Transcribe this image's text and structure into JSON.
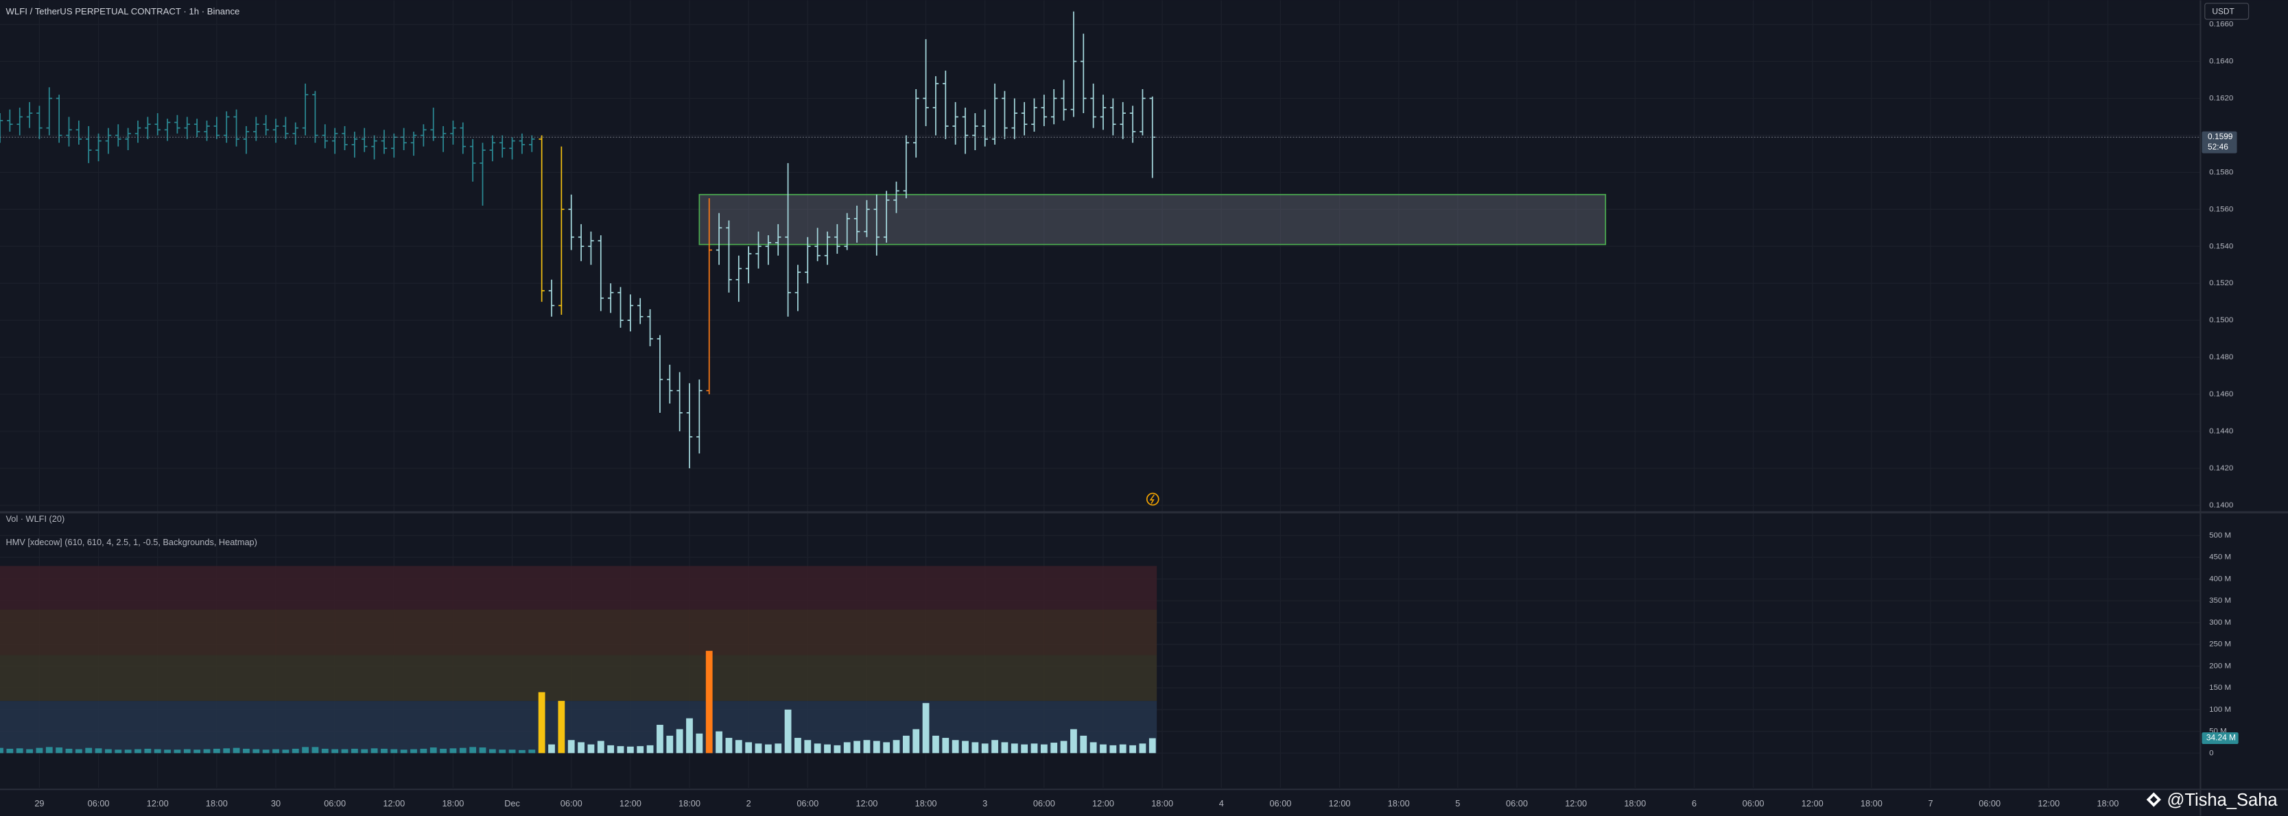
{
  "chart_data": {
    "type": "candlestick",
    "title": "WLFI / TetherUS PERPETUAL CONTRACT · 1h · Binance",
    "currency": "USDT",
    "countdown": "52:46",
    "volume_title": "Vol · WLFI (20)",
    "indicator_title": "HMV [xdecow] (610, 610, 4, 2.5, 1, -0.5, Backgrounds, Heatmap)",
    "watermark": "@Tisha_Saha",
    "xlim": [
      0,
      223.4
    ],
    "xticks": [
      {
        "value": 4,
        "label": "29"
      },
      {
        "value": 10,
        "label": "06:00"
      },
      {
        "value": 16,
        "label": "12:00"
      },
      {
        "value": 22,
        "label": "18:00"
      },
      {
        "value": 28,
        "label": "30"
      },
      {
        "value": 34,
        "label": "06:00"
      },
      {
        "value": 40,
        "label": "12:00"
      },
      {
        "value": 46,
        "label": "18:00"
      },
      {
        "value": 52,
        "label": "Dec"
      },
      {
        "value": 58,
        "label": "06:00"
      },
      {
        "value": 64,
        "label": "12:00"
      },
      {
        "value": 70,
        "label": "18:00"
      },
      {
        "value": 76,
        "label": "2"
      },
      {
        "value": 82,
        "label": "06:00"
      },
      {
        "value": 88,
        "label": "12:00"
      },
      {
        "value": 94,
        "label": "18:00"
      },
      {
        "value": 100,
        "label": "3"
      },
      {
        "value": 106,
        "label": "06:00"
      },
      {
        "value": 112,
        "label": "12:00"
      },
      {
        "value": 118,
        "label": "18:00"
      },
      {
        "value": 124,
        "label": "4"
      },
      {
        "value": 130,
        "label": "06:00"
      },
      {
        "value": 136,
        "label": "12:00"
      },
      {
        "value": 142,
        "label": "18:00"
      },
      {
        "value": 148,
        "label": "5"
      },
      {
        "value": 154,
        "label": "06:00"
      },
      {
        "value": 160,
        "label": "12:00"
      },
      {
        "value": 166,
        "label": "18:00"
      },
      {
        "value": 172,
        "label": "6"
      },
      {
        "value": 178,
        "label": "06:00"
      },
      {
        "value": 184,
        "label": "12:00"
      },
      {
        "value": 190,
        "label": "18:00"
      },
      {
        "value": 196,
        "label": "7"
      },
      {
        "value": 202,
        "label": "06:00"
      },
      {
        "value": 208,
        "label": "12:00"
      },
      {
        "value": 214,
        "label": "18:00"
      }
    ],
    "ylim": [
      0.1397,
      0.1673
    ],
    "yticks": [
      {
        "value": 0.14,
        "label": "0.1400"
      },
      {
        "value": 0.142,
        "label": "0.1420"
      },
      {
        "value": 0.144,
        "label": "0.1440"
      },
      {
        "value": 0.146,
        "label": "0.1460"
      },
      {
        "value": 0.148,
        "label": "0.1480"
      },
      {
        "value": 0.15,
        "label": "0.1500"
      },
      {
        "value": 0.152,
        "label": "0.1520"
      },
      {
        "value": 0.154,
        "label": "0.1540"
      },
      {
        "value": 0.156,
        "label": "0.1560"
      },
      {
        "value": 0.158,
        "label": "0.1580"
      },
      {
        "value": 0.16,
        "label": "0.1600"
      },
      {
        "value": 0.162,
        "label": "0.1620"
      },
      {
        "value": 0.164,
        "label": "0.1640"
      },
      {
        "value": 0.166,
        "label": "0.1660"
      }
    ],
    "grid": true,
    "zone": {
      "x": [
        71,
        163
      ],
      "price": [
        0.1541,
        0.1568
      ],
      "color": "#4caf50"
    },
    "bar_colors": [
      {
        "min": 0,
        "color": "#2b8c96"
      },
      {
        "min": 15,
        "color": "#a7dbe0"
      },
      {
        "min": 120,
        "color": "#f5c211"
      },
      {
        "min": 225,
        "color": "#ff7b16"
      }
    ],
    "heatmap": [
      {
        "from": 0,
        "to": 120,
        "color": "#24344a"
      },
      {
        "from": 120,
        "to": 225,
        "color": "#373427"
      },
      {
        "from": 225,
        "to": 330,
        "color": "#3d2c25"
      },
      {
        "from": 330,
        "to": 430,
        "color": "#3a1e28"
      }
    ],
    "vol_ylim": [
      -80,
      550
    ],
    "vol_yticks": [
      0,
      {
        "value": 50,
        "label": "50 M"
      },
      {
        "value": 100,
        "label": "100 M"
      },
      {
        "value": 150,
        "label": "150 M"
      },
      {
        "value": 200,
        "label": "200 M"
      },
      {
        "value": 250,
        "label": "250 M"
      },
      {
        "value": 300,
        "label": "300 M"
      },
      {
        "value": 350,
        "label": "350 M"
      },
      {
        "value": 400,
        "label": "400 M"
      },
      {
        "value": 450,
        "label": "450 M"
      },
      {
        "value": 500,
        "label": "500 M"
      }
    ],
    "ohlc": [
      [
        0.1603,
        0.1612,
        0.1596,
        0.1608
      ],
      [
        0.1608,
        0.1614,
        0.1602,
        0.1606
      ],
      [
        0.1606,
        0.1615,
        0.16,
        0.161
      ],
      [
        0.161,
        0.1618,
        0.1604,
        0.1612
      ],
      [
        0.1612,
        0.1616,
        0.1598,
        0.1604
      ],
      [
        0.1604,
        0.1626,
        0.16,
        0.162
      ],
      [
        0.162,
        0.1622,
        0.1596,
        0.16
      ],
      [
        0.16,
        0.161,
        0.1594,
        0.1603
      ],
      [
        0.1603,
        0.1608,
        0.1595,
        0.1598
      ],
      [
        0.1598,
        0.1605,
        0.1585,
        0.1592
      ],
      [
        0.1592,
        0.1601,
        0.1586,
        0.1597
      ],
      [
        0.1597,
        0.1604,
        0.159,
        0.16
      ],
      [
        0.16,
        0.1606,
        0.1594,
        0.1598
      ],
      [
        0.1598,
        0.1604,
        0.1592,
        0.1601
      ],
      [
        0.1601,
        0.1608,
        0.1596,
        0.1604
      ],
      [
        0.1604,
        0.161,
        0.1598,
        0.1606
      ],
      [
        0.1606,
        0.1612,
        0.16,
        0.1603
      ],
      [
        0.1603,
        0.1609,
        0.1597,
        0.1607
      ],
      [
        0.1607,
        0.1611,
        0.1601,
        0.1604
      ],
      [
        0.1604,
        0.161,
        0.1598,
        0.1606
      ],
      [
        0.1606,
        0.1609,
        0.1599,
        0.1602
      ],
      [
        0.1602,
        0.1608,
        0.1597,
        0.1605
      ],
      [
        0.1605,
        0.161,
        0.1598,
        0.16
      ],
      [
        0.16,
        0.1613,
        0.1596,
        0.161
      ],
      [
        0.161,
        0.1614,
        0.1594,
        0.1598
      ],
      [
        0.1598,
        0.1605,
        0.159,
        0.1602
      ],
      [
        0.1602,
        0.161,
        0.1597,
        0.1606
      ],
      [
        0.1606,
        0.1611,
        0.16,
        0.1603
      ],
      [
        0.1603,
        0.1609,
        0.1596,
        0.1605
      ],
      [
        0.1605,
        0.161,
        0.1598,
        0.1601
      ],
      [
        0.1601,
        0.1607,
        0.1595,
        0.1604
      ],
      [
        0.1604,
        0.1628,
        0.16,
        0.1622
      ],
      [
        0.1622,
        0.1624,
        0.1596,
        0.16
      ],
      [
        0.16,
        0.1606,
        0.1593,
        0.1597
      ],
      [
        0.1597,
        0.1604,
        0.159,
        0.1601
      ],
      [
        0.1601,
        0.1605,
        0.1592,
        0.1595
      ],
      [
        0.1595,
        0.1602,
        0.1588,
        0.1598
      ],
      [
        0.1598,
        0.1604,
        0.1591,
        0.1594
      ],
      [
        0.1594,
        0.16,
        0.1587,
        0.1597
      ],
      [
        0.1597,
        0.1603,
        0.159,
        0.1593
      ],
      [
        0.1593,
        0.1601,
        0.1588,
        0.1599
      ],
      [
        0.1599,
        0.1604,
        0.1592,
        0.1596
      ],
      [
        0.1596,
        0.1602,
        0.1589,
        0.16
      ],
      [
        0.16,
        0.1606,
        0.1594,
        0.1603
      ],
      [
        0.1603,
        0.1615,
        0.1597,
        0.1599
      ],
      [
        0.1599,
        0.1605,
        0.1591,
        0.1601
      ],
      [
        0.1601,
        0.1608,
        0.1595,
        0.1604
      ],
      [
        0.1604,
        0.1607,
        0.159,
        0.1594
      ],
      [
        0.1594,
        0.1598,
        0.1575,
        0.1585
      ],
      [
        0.1585,
        0.1596,
        0.1562,
        0.1592
      ],
      [
        0.1592,
        0.16,
        0.1586,
        0.1596
      ],
      [
        0.1596,
        0.16,
        0.1588,
        0.1593
      ],
      [
        0.1593,
        0.1599,
        0.1587,
        0.1597
      ],
      [
        0.1597,
        0.1601,
        0.159,
        0.1595
      ],
      [
        0.1595,
        0.16,
        0.1591,
        0.1598
      ],
      [
        0.1598,
        0.16,
        0.151,
        0.1516
      ],
      [
        0.1516,
        0.1522,
        0.1502,
        0.1508
      ],
      [
        0.1508,
        0.1594,
        0.1503,
        0.156
      ],
      [
        0.156,
        0.1568,
        0.1538,
        0.1545
      ],
      [
        0.1545,
        0.1552,
        0.1532,
        0.154
      ],
      [
        0.154,
        0.1548,
        0.153,
        0.1543
      ],
      [
        0.1543,
        0.1546,
        0.1505,
        0.1512
      ],
      [
        0.1512,
        0.152,
        0.1504,
        0.1515
      ],
      [
        0.1515,
        0.1518,
        0.1496,
        0.15
      ],
      [
        0.15,
        0.1514,
        0.1494,
        0.1508
      ],
      [
        0.1508,
        0.1512,
        0.1498,
        0.1502
      ],
      [
        0.1502,
        0.1506,
        0.1486,
        0.149
      ],
      [
        0.149,
        0.1492,
        0.145,
        0.1468
      ],
      [
        0.1468,
        0.1476,
        0.1455,
        0.1462
      ],
      [
        0.1462,
        0.1472,
        0.144,
        0.145
      ],
      [
        0.145,
        0.1466,
        0.142,
        0.1437
      ],
      [
        0.1437,
        0.1468,
        0.1428,
        0.1462
      ],
      [
        0.1462,
        0.1566,
        0.146,
        0.1538
      ],
      [
        0.1538,
        0.1558,
        0.153,
        0.155
      ],
      [
        0.155,
        0.1554,
        0.1515,
        0.1522
      ],
      [
        0.1522,
        0.1535,
        0.151,
        0.1528
      ],
      [
        0.1528,
        0.154,
        0.152,
        0.1536
      ],
      [
        0.1536,
        0.1548,
        0.1528,
        0.154
      ],
      [
        0.154,
        0.1546,
        0.153,
        0.1542
      ],
      [
        0.1542,
        0.1552,
        0.1535,
        0.1545
      ],
      [
        0.1545,
        0.1585,
        0.1502,
        0.1515
      ],
      [
        0.1515,
        0.153,
        0.1505,
        0.1526
      ],
      [
        0.1526,
        0.1545,
        0.152,
        0.154
      ],
      [
        0.154,
        0.155,
        0.1532,
        0.1535
      ],
      [
        0.1535,
        0.1548,
        0.153,
        0.1545
      ],
      [
        0.1545,
        0.1552,
        0.1536,
        0.154
      ],
      [
        0.154,
        0.1558,
        0.1538,
        0.1555
      ],
      [
        0.1555,
        0.1562,
        0.1542,
        0.1548
      ],
      [
        0.1548,
        0.1565,
        0.1545,
        0.156
      ],
      [
        0.156,
        0.1568,
        0.1535,
        0.1545
      ],
      [
        0.1545,
        0.157,
        0.1542,
        0.1565
      ],
      [
        0.1565,
        0.1575,
        0.1558,
        0.157
      ],
      [
        0.157,
        0.16,
        0.1566,
        0.1596
      ],
      [
        0.1596,
        0.1625,
        0.1588,
        0.162
      ],
      [
        0.162,
        0.1652,
        0.1605,
        0.1615
      ],
      [
        0.1615,
        0.1632,
        0.16,
        0.1628
      ],
      [
        0.1628,
        0.1635,
        0.1598,
        0.1605
      ],
      [
        0.1605,
        0.1618,
        0.1595,
        0.161
      ],
      [
        0.161,
        0.1615,
        0.159,
        0.16
      ],
      [
        0.16,
        0.1612,
        0.1592,
        0.1605
      ],
      [
        0.1605,
        0.1614,
        0.1594,
        0.1598
      ],
      [
        0.1598,
        0.1628,
        0.1595,
        0.162
      ],
      [
        0.162,
        0.1624,
        0.1598,
        0.1604
      ],
      [
        0.1604,
        0.162,
        0.1598,
        0.1612
      ],
      [
        0.1612,
        0.1618,
        0.16,
        0.1606
      ],
      [
        0.1606,
        0.162,
        0.1602,
        0.1615
      ],
      [
        0.1615,
        0.1622,
        0.1605,
        0.161
      ],
      [
        0.161,
        0.1625,
        0.1606,
        0.162
      ],
      [
        0.162,
        0.163,
        0.1608,
        0.1614
      ],
      [
        0.1614,
        0.1667,
        0.161,
        0.164
      ],
      [
        0.164,
        0.1655,
        0.1612,
        0.162
      ],
      [
        0.162,
        0.1628,
        0.1604,
        0.161
      ],
      [
        0.161,
        0.1622,
        0.1603,
        0.1615
      ],
      [
        0.1615,
        0.162,
        0.16,
        0.1606
      ],
      [
        0.1606,
        0.1618,
        0.1598,
        0.1612
      ],
      [
        0.1612,
        0.1616,
        0.1596,
        0.1602
      ],
      [
        0.1602,
        0.1625,
        0.16,
        0.162
      ],
      [
        0.162,
        0.1621,
        0.1577,
        0.1599
      ]
    ],
    "volume": {
      "values": [
        12,
        10,
        11,
        9,
        12,
        14,
        13,
        10,
        9,
        12,
        11,
        9,
        8,
        8,
        9,
        10,
        9,
        8,
        8,
        9,
        8,
        9,
        10,
        11,
        12,
        10,
        9,
        8,
        9,
        8,
        10,
        14,
        14,
        10,
        9,
        9,
        10,
        9,
        11,
        10,
        9,
        8,
        9,
        10,
        13,
        10,
        11,
        12,
        14,
        13,
        9,
        8,
        8,
        7,
        8,
        140,
        20,
        120,
        30,
        25,
        20,
        28,
        18,
        16,
        15,
        16,
        18,
        65,
        40,
        55,
        80,
        45,
        235,
        50,
        35,
        30,
        25,
        22,
        20,
        22,
        100,
        35,
        30,
        22,
        20,
        18,
        25,
        28,
        30,
        28,
        25,
        30,
        40,
        55,
        115,
        40,
        35,
        30,
        28,
        25,
        22,
        30,
        25,
        22,
        20,
        22,
        20,
        24,
        28,
        55,
        40,
        25,
        20,
        18,
        20,
        18,
        22,
        34.24
      ],
      "last_label": "34.24 M"
    }
  }
}
